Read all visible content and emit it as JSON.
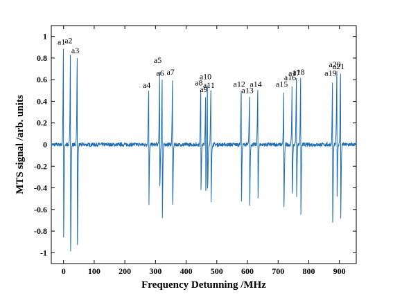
{
  "chart_data": {
    "type": "line",
    "xlabel": "Frequency Detunning /MHz",
    "ylabel": "MTS signal /arb. units",
    "xlim": [
      -40,
      955
    ],
    "ylim": [
      -1.1,
      1.1
    ],
    "xticks": [
      0,
      100,
      200,
      300,
      400,
      500,
      600,
      700,
      800,
      900
    ],
    "yticks": [
      -1,
      -0.8,
      -0.6,
      -0.4,
      -0.2,
      0,
      0.2,
      0.4,
      0.6,
      0.8,
      1
    ],
    "line_color": "#1f6fb4",
    "grid": false,
    "peaks": [
      {
        "label": "a1",
        "x": 0,
        "ymax": 0.9,
        "ymin": -0.87
      },
      {
        "label": "a2",
        "x": 23,
        "ymax": 0.91,
        "ymin": -0.97
      },
      {
        "label": "a3",
        "x": 45,
        "ymax": 0.82,
        "ymin": -0.95
      },
      {
        "label": "a4",
        "x": 278,
        "ymax": 0.5,
        "ymin": -0.59
      },
      {
        "label": "a5",
        "x": 314,
        "ymax": 0.73,
        "ymin": -0.38
      },
      {
        "label": "a6",
        "x": 322,
        "ymax": 0.61,
        "ymin": -0.7
      },
      {
        "label": "a7",
        "x": 356,
        "ymax": 0.62,
        "ymin": -0.56
      },
      {
        "label": "a8",
        "x": 448,
        "ymax": 0.52,
        "ymin": -0.43
      },
      {
        "label": "a9",
        "x": 464,
        "ymax": 0.46,
        "ymin": -0.44
      },
      {
        "label": "a10",
        "x": 470,
        "ymax": 0.58,
        "ymin": -0.4
      },
      {
        "label": "a11",
        "x": 481,
        "ymax": 0.5,
        "ymin": -0.56
      },
      {
        "label": "a12",
        "x": 580,
        "ymax": 0.51,
        "ymin": -0.56
      },
      {
        "label": "a13",
        "x": 607,
        "ymax": 0.45,
        "ymin": -0.6
      },
      {
        "label": "a14",
        "x": 634,
        "ymax": 0.51,
        "ymin": -0.53
      },
      {
        "label": "a15",
        "x": 719,
        "ymax": 0.51,
        "ymin": -0.57
      },
      {
        "label": "a16",
        "x": 746,
        "ymax": 0.57,
        "ymin": -0.47
      },
      {
        "label": "a17",
        "x": 760,
        "ymax": 0.61,
        "ymin": -0.5
      },
      {
        "label": "a18",
        "x": 774,
        "ymax": 0.62,
        "ymin": -0.64
      },
      {
        "label": "a19",
        "x": 878,
        "ymax": 0.61,
        "ymin": -0.72
      },
      {
        "label": "a20",
        "x": 892,
        "ymax": 0.69,
        "ymin": -0.48
      },
      {
        "label": "a21",
        "x": 904,
        "ymax": 0.67,
        "ymin": -0.71
      }
    ]
  }
}
